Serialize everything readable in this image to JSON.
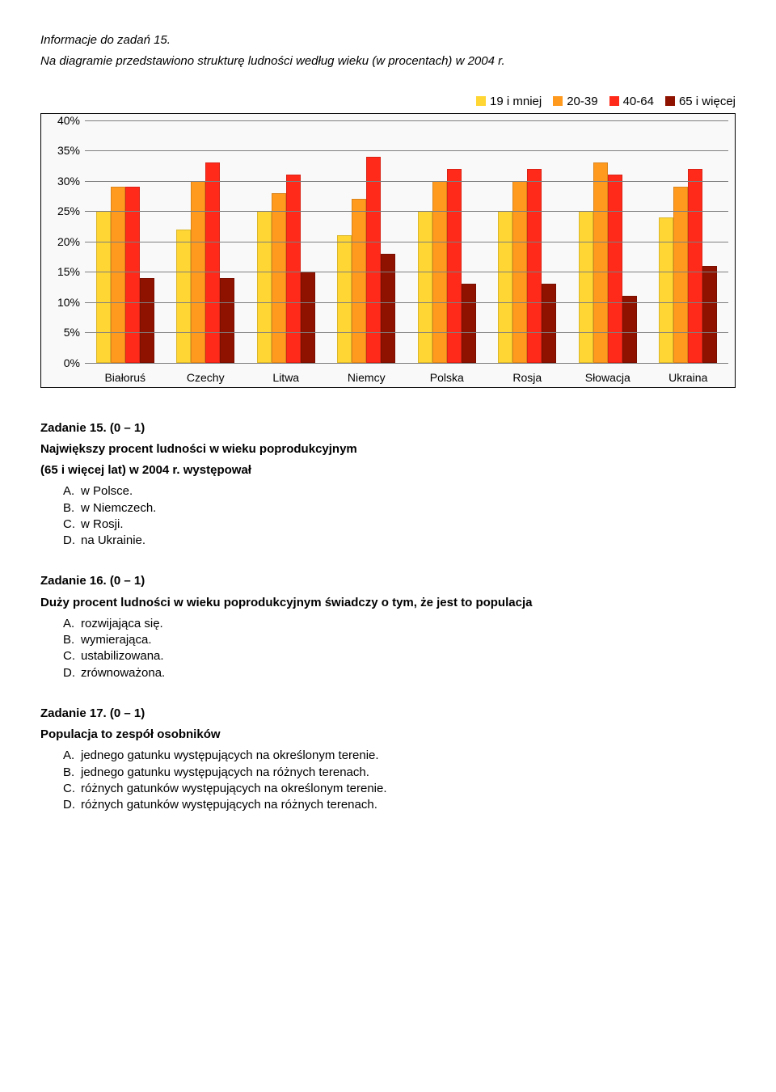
{
  "intro": {
    "title": "Informacje do zadań 15.",
    "text": "Na diagramie przedstawiono strukturę ludności według wieku (w procentach) w 2004 r."
  },
  "chart": {
    "type": "grouped-bar",
    "ymax": 40,
    "ytick_step": 5,
    "y_suffix": "%",
    "background": "#f9f9f9",
    "grid_color": "#7f7f7f",
    "legend": [
      {
        "label": "19 i mniej",
        "color": "#ffd633"
      },
      {
        "label": "20-39",
        "color": "#ff9a1f"
      },
      {
        "label": "40-64",
        "color": "#ff2a1a"
      },
      {
        "label": "65 i więcej",
        "color": "#8f1200"
      }
    ],
    "categories": [
      "Białoruś",
      "Czechy",
      "Litwa",
      "Niemcy",
      "Polska",
      "Rosja",
      "Słowacja",
      "Ukraina"
    ],
    "series": [
      [
        25,
        29,
        29,
        14
      ],
      [
        22,
        30,
        33,
        14
      ],
      [
        25,
        28,
        31,
        15
      ],
      [
        21,
        27,
        34,
        18
      ],
      [
        25,
        30,
        32,
        13
      ],
      [
        25,
        30,
        32,
        13
      ],
      [
        25,
        33,
        31,
        11
      ],
      [
        24,
        29,
        32,
        16
      ]
    ]
  },
  "q15": {
    "heading": "Zadanie 15. (0 – 1)",
    "prompt_line1": "Największy procent ludności w wieku poprodukcyjnym",
    "prompt_line2": "(65 i więcej lat) w 2004 r. występował",
    "answers": [
      {
        "letter": "A.",
        "text": "w Polsce."
      },
      {
        "letter": "B.",
        "text": "w Niemczech."
      },
      {
        "letter": "C.",
        "text": "w Rosji."
      },
      {
        "letter": "D.",
        "text": "na Ukrainie."
      }
    ]
  },
  "q16": {
    "heading": "Zadanie 16. (0 – 1)",
    "prompt_line1": "Duży procent ludności w wieku poprodukcyjnym świadczy o tym, że jest to populacja",
    "answers": [
      {
        "letter": "A.",
        "text": "rozwijająca się."
      },
      {
        "letter": "B.",
        "text": "wymierająca."
      },
      {
        "letter": "C.",
        "text": "ustabilizowana."
      },
      {
        "letter": "D.",
        "text": "zrównoważona."
      }
    ]
  },
  "q17": {
    "heading": "Zadanie 17. (0 – 1)",
    "prompt": "Populacja to zespół osobników",
    "answers": [
      {
        "letter": "A.",
        "text": "jednego gatunku występujących na określonym terenie."
      },
      {
        "letter": "B.",
        "text": "jednego gatunku występujących na różnych terenach."
      },
      {
        "letter": "C.",
        "text": "różnych gatunków występujących na określonym terenie."
      },
      {
        "letter": "D.",
        "text": "różnych gatunków występujących na różnych terenach."
      }
    ]
  }
}
